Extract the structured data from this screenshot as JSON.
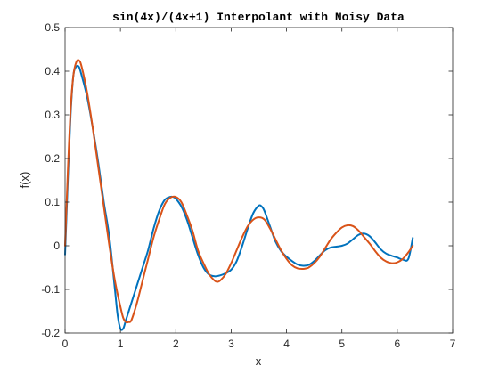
{
  "chart_data": {
    "type": "line",
    "title": "sin(4x)/(4x+1) Interpolant with Noisy Data",
    "xlabel": "x",
    "ylabel": "f(x)",
    "xlim": [
      0,
      7
    ],
    "ylim": [
      -0.2,
      0.5
    ],
    "xticks": [
      0,
      1,
      2,
      3,
      4,
      5,
      6,
      7
    ],
    "yticks": [
      -0.2,
      -0.1,
      0,
      0.1,
      0.2,
      0.3,
      0.4,
      0.5
    ],
    "xtick_labels": [
      "0",
      "1",
      "2",
      "3",
      "4",
      "5",
      "6",
      "7"
    ],
    "ytick_labels": [
      "-0.2",
      "-0.1",
      "0",
      "0.1",
      "0.2",
      "0.3",
      "0.4",
      "0.5"
    ],
    "grid": false,
    "series": [
      {
        "color": "#0072bd",
        "x": [
          0,
          0.05,
          0.1,
          0.15,
          0.2,
          0.25,
          0.3,
          0.4,
          0.5,
          0.6,
          0.7,
          0.8,
          0.9,
          0.95,
          1.0,
          1.05,
          1.1,
          1.2,
          1.3,
          1.4,
          1.5,
          1.6,
          1.7,
          1.8,
          1.9,
          1.95,
          2.0,
          2.1,
          2.2,
          2.3,
          2.4,
          2.5,
          2.6,
          2.7,
          2.8,
          2.9,
          3.0,
          3.1,
          3.2,
          3.3,
          3.4,
          3.5,
          3.55,
          3.6,
          3.7,
          3.8,
          3.9,
          4.0,
          4.1,
          4.2,
          4.3,
          4.4,
          4.5,
          4.6,
          4.7,
          4.8,
          4.9,
          5.0,
          5.1,
          5.2,
          5.3,
          5.4,
          5.5,
          5.6,
          5.7,
          5.8,
          5.9,
          6.0,
          6.1,
          6.2,
          6.28
        ],
        "y": [
          -0.02,
          0.15,
          0.3,
          0.39,
          0.41,
          0.41,
          0.39,
          0.34,
          0.27,
          0.19,
          0.1,
          0.02,
          -0.1,
          -0.16,
          -0.19,
          -0.19,
          -0.17,
          -0.13,
          -0.09,
          -0.05,
          -0.01,
          0.04,
          0.08,
          0.105,
          0.112,
          0.112,
          0.108,
          0.09,
          0.06,
          0.02,
          -0.02,
          -0.05,
          -0.066,
          -0.07,
          -0.068,
          -0.063,
          -0.055,
          -0.035,
          0.0,
          0.04,
          0.075,
          0.092,
          0.09,
          0.08,
          0.045,
          0.01,
          -0.012,
          -0.025,
          -0.035,
          -0.043,
          -0.046,
          -0.044,
          -0.035,
          -0.022,
          -0.01,
          -0.004,
          -0.002,
          0.0,
          0.005,
          0.015,
          0.025,
          0.028,
          0.022,
          0.008,
          -0.008,
          -0.018,
          -0.023,
          -0.027,
          -0.032,
          -0.03,
          0.018
        ]
      },
      {
        "color": "#d95319",
        "x": [
          0,
          0.05,
          0.1,
          0.15,
          0.2,
          0.25,
          0.3,
          0.4,
          0.5,
          0.6,
          0.7,
          0.8,
          0.9,
          1.0,
          1.05,
          1.1,
          1.15,
          1.2,
          1.3,
          1.4,
          1.5,
          1.6,
          1.7,
          1.8,
          1.9,
          2.0,
          2.1,
          2.2,
          2.3,
          2.4,
          2.5,
          2.6,
          2.7,
          2.75,
          2.8,
          2.9,
          3.0,
          3.1,
          3.2,
          3.3,
          3.4,
          3.5,
          3.6,
          3.7,
          3.8,
          3.9,
          4.0,
          4.1,
          4.2,
          4.3,
          4.35,
          4.4,
          4.5,
          4.6,
          4.7,
          4.8,
          4.9,
          5.0,
          5.1,
          5.2,
          5.3,
          5.4,
          5.5,
          5.6,
          5.7,
          5.8,
          5.9,
          6.0,
          6.1,
          6.2,
          6.28
        ],
        "y": [
          0.0,
          0.17,
          0.31,
          0.39,
          0.42,
          0.425,
          0.41,
          0.35,
          0.27,
          0.18,
          0.09,
          0.0,
          -0.08,
          -0.14,
          -0.165,
          -0.175,
          -0.175,
          -0.17,
          -0.13,
          -0.08,
          -0.03,
          0.02,
          0.06,
          0.095,
          0.11,
          0.112,
          0.1,
          0.07,
          0.035,
          -0.01,
          -0.04,
          -0.065,
          -0.08,
          -0.083,
          -0.08,
          -0.065,
          -0.04,
          -0.01,
          0.02,
          0.045,
          0.06,
          0.065,
          0.06,
          0.04,
          0.015,
          -0.01,
          -0.03,
          -0.045,
          -0.052,
          -0.053,
          -0.052,
          -0.05,
          -0.04,
          -0.025,
          -0.005,
          0.015,
          0.03,
          0.042,
          0.047,
          0.045,
          0.035,
          0.02,
          0.005,
          -0.012,
          -0.027,
          -0.036,
          -0.04,
          -0.038,
          -0.03,
          -0.015,
          0.0
        ]
      }
    ]
  }
}
